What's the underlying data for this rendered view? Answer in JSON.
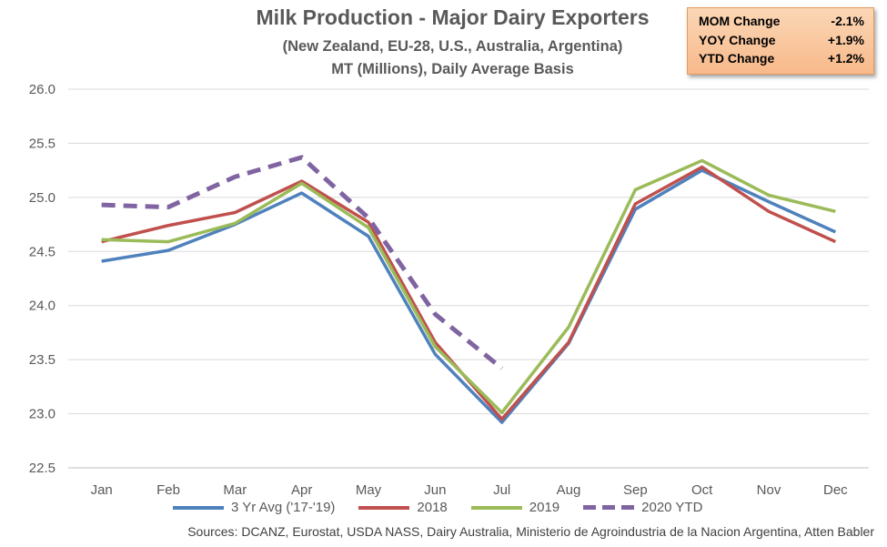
{
  "title": "Milk Production - Major Dairy Exporters",
  "subtitle1": "(New Zealand, EU-28, U.S., Australia, Argentina)",
  "subtitle2": "MT (Millions), Daily Average Basis",
  "stats": [
    {
      "label": "MOM Change",
      "value": "-2.1%"
    },
    {
      "label": "YOY Change",
      "value": "+1.9%"
    },
    {
      "label": "YTD Change",
      "value": "+1.2%"
    }
  ],
  "source": "Sources: DCANZ, Eurostat, USDA NASS, Dairy Australia, Ministerio de Agroindustria de la Nacion Argentina, Atten Babler",
  "chart_data": {
    "type": "line",
    "categories": [
      "Jan",
      "Feb",
      "Mar",
      "Apr",
      "May",
      "Jun",
      "Jul",
      "Aug",
      "Sep",
      "Oct",
      "Nov",
      "Dec"
    ],
    "ylim": [
      22.5,
      26.0
    ],
    "yticks": [
      "22.5",
      "23.0",
      "23.5",
      "24.0",
      "24.5",
      "25.0",
      "25.5",
      "26.0"
    ],
    "grid": true,
    "legend_position": "bottom",
    "series": [
      {
        "name": "3 Yr Avg ('17-'19)",
        "color": "#4f81bd",
        "style": "solid",
        "values": [
          24.41,
          24.51,
          24.75,
          25.04,
          24.64,
          23.55,
          22.92,
          23.65,
          24.89,
          25.25,
          24.96,
          24.68
        ]
      },
      {
        "name": "2018",
        "color": "#c0504d",
        "style": "solid",
        "values": [
          24.59,
          24.74,
          24.86,
          25.15,
          24.77,
          23.66,
          22.95,
          23.66,
          24.94,
          25.28,
          24.87,
          24.59
        ]
      },
      {
        "name": "2019",
        "color": "#9bbb59",
        "style": "solid",
        "values": [
          24.61,
          24.59,
          24.76,
          25.13,
          24.72,
          23.62,
          23.01,
          23.8,
          25.07,
          25.34,
          25.02,
          24.87
        ]
      },
      {
        "name": "2020 YTD",
        "color": "#8064a2",
        "style": "dashed",
        "values": [
          24.93,
          24.91,
          25.19,
          25.37,
          24.81,
          23.92,
          23.42,
          null,
          null,
          null,
          null,
          null
        ]
      }
    ]
  }
}
